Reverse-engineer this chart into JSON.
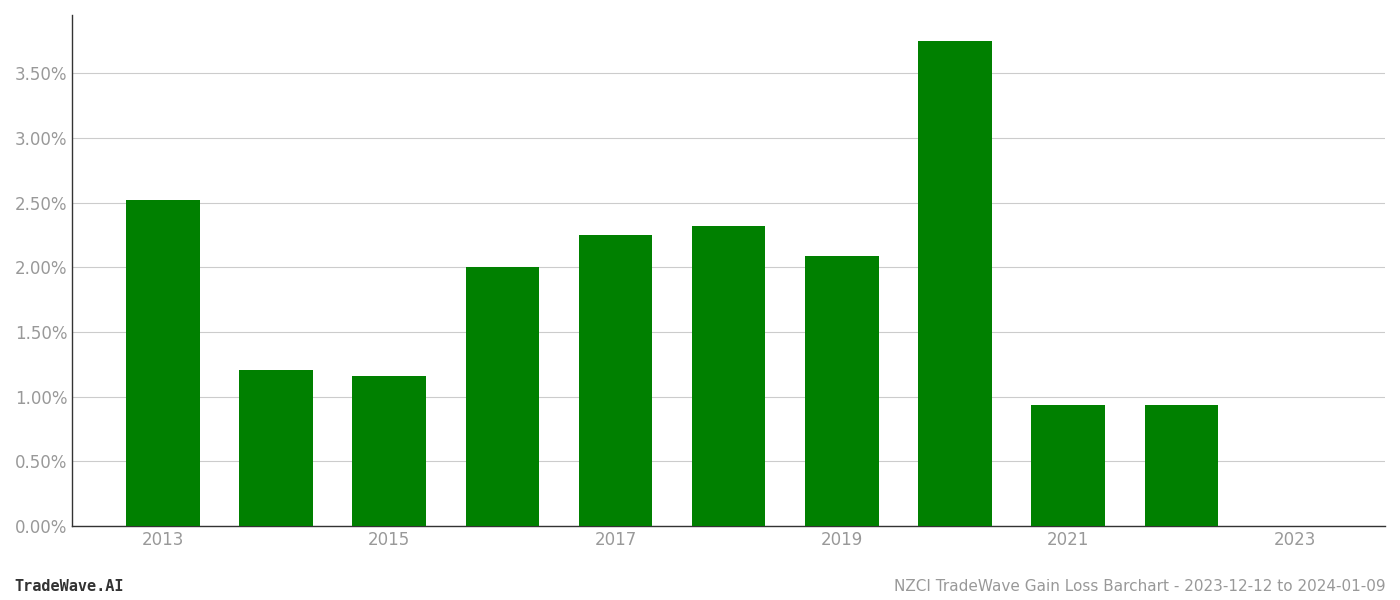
{
  "years": [
    2013,
    2014,
    2015,
    2016,
    2017,
    2018,
    2019,
    2020,
    2021,
    2022,
    2023
  ],
  "values": [
    0.0252,
    0.0121,
    0.0116,
    0.02,
    0.0225,
    0.0232,
    0.0209,
    0.0375,
    0.0094,
    0.0094,
    0.0
  ],
  "bar_color": "#008000",
  "background_color": "#ffffff",
  "title": "NZCI TradeWave Gain Loss Barchart - 2023-12-12 to 2024-01-09",
  "watermark": "TradeWave.AI",
  "xlim": [
    2012.2,
    2023.8
  ],
  "ylim": [
    0.0,
    0.0395
  ],
  "yticks": [
    0.0,
    0.005,
    0.01,
    0.015,
    0.02,
    0.025,
    0.03,
    0.035
  ],
  "xticks": [
    2013,
    2015,
    2017,
    2019,
    2021,
    2023
  ],
  "grid_color": "#cccccc",
  "tick_color": "#999999",
  "title_fontsize": 11,
  "watermark_fontsize": 11,
  "bar_width": 0.65
}
